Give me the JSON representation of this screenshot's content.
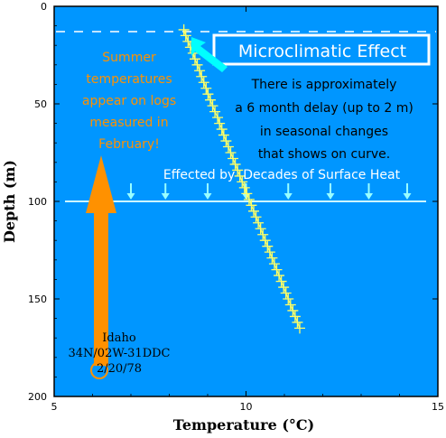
{
  "chart_data": {
    "type": "scatter",
    "title": "",
    "xlabel": "Temperature (°C)",
    "ylabel": "Depth (m)",
    "xlim": [
      5,
      15
    ],
    "ylim": [
      200,
      0
    ],
    "y_inverted": true,
    "x_ticks": [
      "5",
      "10",
      "15"
    ],
    "y_ticks": [
      "0",
      "50",
      "100",
      "150",
      "200"
    ],
    "grid": false,
    "series": [
      {
        "marker": "plus",
        "line": true,
        "color": "#ffff66",
        "points": [
          [
            8.38,
            12
          ],
          [
            8.43,
            15
          ],
          [
            8.49,
            18
          ],
          [
            8.55,
            21
          ],
          [
            8.62,
            24
          ],
          [
            8.67,
            27
          ],
          [
            8.73,
            30
          ],
          [
            8.79,
            33
          ],
          [
            8.84,
            36
          ],
          [
            8.9,
            39
          ],
          [
            8.96,
            42
          ],
          [
            9.01,
            45
          ],
          [
            9.07,
            48
          ],
          [
            9.13,
            51
          ],
          [
            9.19,
            54
          ],
          [
            9.26,
            57
          ],
          [
            9.31,
            60
          ],
          [
            9.37,
            63
          ],
          [
            9.42,
            66
          ],
          [
            9.48,
            69
          ],
          [
            9.54,
            72
          ],
          [
            9.6,
            75
          ],
          [
            9.66,
            78
          ],
          [
            9.72,
            81
          ],
          [
            9.78,
            84
          ],
          [
            9.84,
            87
          ],
          [
            9.9,
            90
          ],
          [
            9.96,
            93
          ],
          [
            10.02,
            96
          ],
          [
            10.08,
            99
          ],
          [
            10.14,
            102
          ],
          [
            10.2,
            105
          ],
          [
            10.26,
            108
          ],
          [
            10.32,
            111
          ],
          [
            10.38,
            114
          ],
          [
            10.44,
            117
          ],
          [
            10.5,
            120
          ],
          [
            10.56,
            123
          ],
          [
            10.62,
            126
          ],
          [
            10.68,
            129
          ],
          [
            10.74,
            132
          ],
          [
            10.8,
            135
          ],
          [
            10.86,
            138
          ],
          [
            10.92,
            141
          ],
          [
            10.98,
            144
          ],
          [
            11.04,
            147
          ],
          [
            11.1,
            150
          ],
          [
            11.16,
            153
          ],
          [
            11.22,
            156
          ],
          [
            11.28,
            159
          ],
          [
            11.34,
            162
          ],
          [
            11.4,
            165
          ]
        ]
      }
    ],
    "reference_lines": [
      {
        "depth": 13,
        "style": "dashed",
        "color": "#ffffff"
      },
      {
        "depth": 100,
        "style": "solid",
        "color": "#ccffff"
      }
    ],
    "heat_arrow_x": [
      6.3,
      7.0,
      7.9,
      9.0,
      10.0,
      11.1,
      12.2,
      13.2,
      14.2
    ],
    "annotations": {
      "microclimatic": "Microclimatic Effect",
      "delay_lines": [
        "There is approximately",
        "a 6 month delay (up to 2 m)",
        "in seasonal changes",
        "that shows on curve."
      ],
      "summer_lines": [
        "Summer",
        "temperatures",
        "appear on logs",
        "measured in",
        "February!"
      ],
      "surface_heat": "Effected by  Decades of Surface Heat",
      "well_lines": [
        "Idaho",
        "34N/02W-31DDC",
        "2/20/78"
      ]
    },
    "colors": {
      "plot_background": "#0096ff",
      "curve": "#ffff66",
      "orange": "#ff9100",
      "cyan": "#00ffff",
      "arrow_light": "#99ffff",
      "box": "#ffffff"
    }
  }
}
